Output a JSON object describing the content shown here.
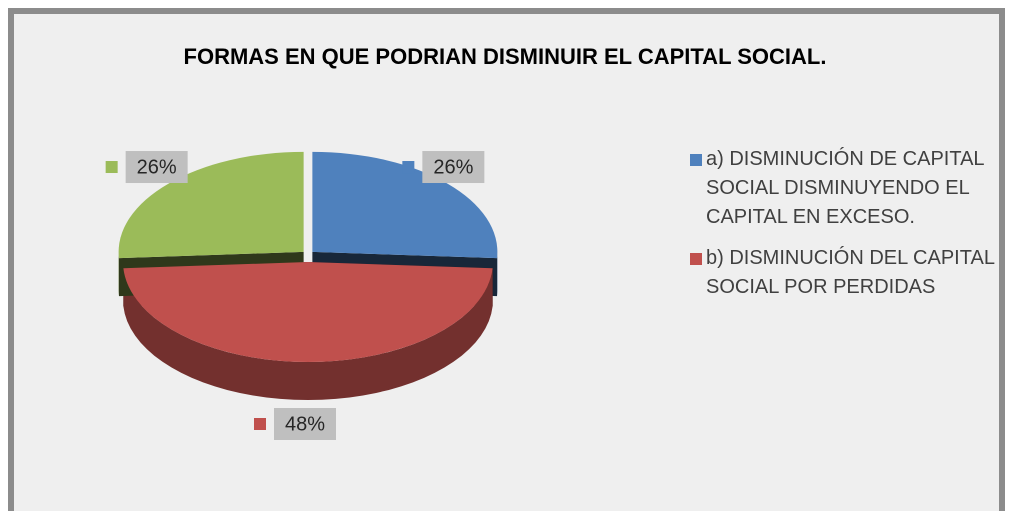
{
  "chart_data": {
    "type": "pie",
    "title": "FORMAS EN QUE PODRIAN DISMINUIR EL CAPITAL SOCIAL.",
    "categories": [
      "a) DISMINUCIÓN DE CAPITAL SOCIAL DISMINUYENDO EL CAPITAL EN EXCESO.",
      "b) DISMINUCIÓN DEL CAPITAL SOCIAL POR PERDIDAS",
      null
    ],
    "values": [
      26,
      48,
      26
    ],
    "value_labels": [
      "26%",
      "48%",
      "26%"
    ],
    "colors": [
      "#4f81bd",
      "#c0504d",
      "#9bbb59"
    ],
    "legend": "right"
  }
}
